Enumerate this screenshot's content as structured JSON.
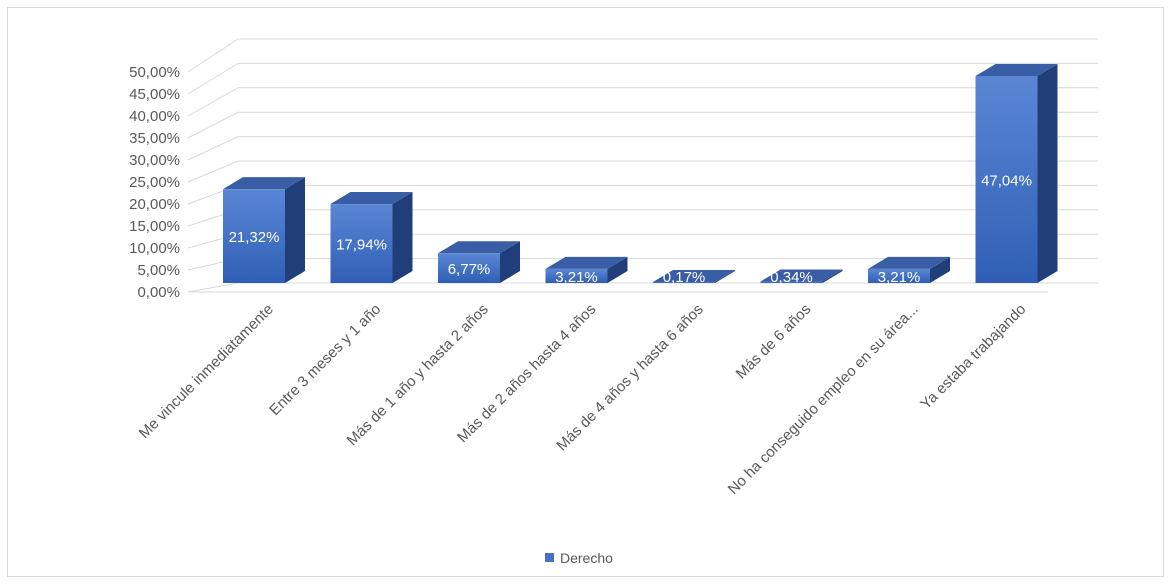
{
  "chart_data": {
    "type": "bar",
    "title": "",
    "xlabel": "",
    "ylabel": "",
    "ylim": [
      0,
      50
    ],
    "y_ticks": [
      "0,00%",
      "5,00%",
      "10,00%",
      "15,00%",
      "20,00%",
      "25,00%",
      "30,00%",
      "35,00%",
      "40,00%",
      "45,00%",
      "50,00%"
    ],
    "categories": [
      "Me vincule inmediatamente",
      "Entre 3 meses y 1 año",
      "Más de 1 año y hasta 2 años",
      "Más de 2 años hasta 4 años",
      "Más de 4 años y hasta 6 años",
      "Más de 6 años",
      "No ha conseguido empleo en su área...",
      "Ya estaba trabajando"
    ],
    "series": [
      {
        "name": "Derecho",
        "values": [
          21.32,
          17.94,
          6.77,
          3.21,
          0.17,
          0.34,
          3.21,
          47.04
        ],
        "labels": [
          "21,32%",
          "17,94%",
          "6,77%",
          "3,21%",
          "0,17%",
          "0,34%",
          "3,21%",
          "47,04%"
        ]
      }
    ],
    "grid": true,
    "legend_position": "bottom",
    "colors": {
      "bar_front_top": "#5b86d4",
      "bar_front_bottom": "#2f5fb5",
      "bar_side": "#203f7a",
      "bar_top": "#3a5ea6",
      "grid": "#d9d9d9"
    }
  }
}
